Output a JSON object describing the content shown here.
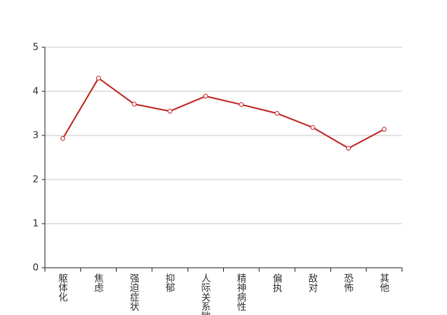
{
  "chart_data": {
    "type": "line",
    "categories": [
      "躯体化",
      "焦虑",
      "强迫症状",
      "抑郁",
      "人际关系敏感",
      "精神病性",
      "偏执",
      "敌对",
      "恐怖",
      "其他"
    ],
    "values": [
      2.93,
      4.3,
      3.71,
      3.55,
      3.89,
      3.7,
      3.5,
      3.18,
      2.71,
      3.14
    ],
    "color": "#c23531",
    "ylim": [
      0,
      5
    ],
    "yticks": [
      0,
      1,
      2,
      3,
      4,
      5
    ],
    "grid": true
  }
}
